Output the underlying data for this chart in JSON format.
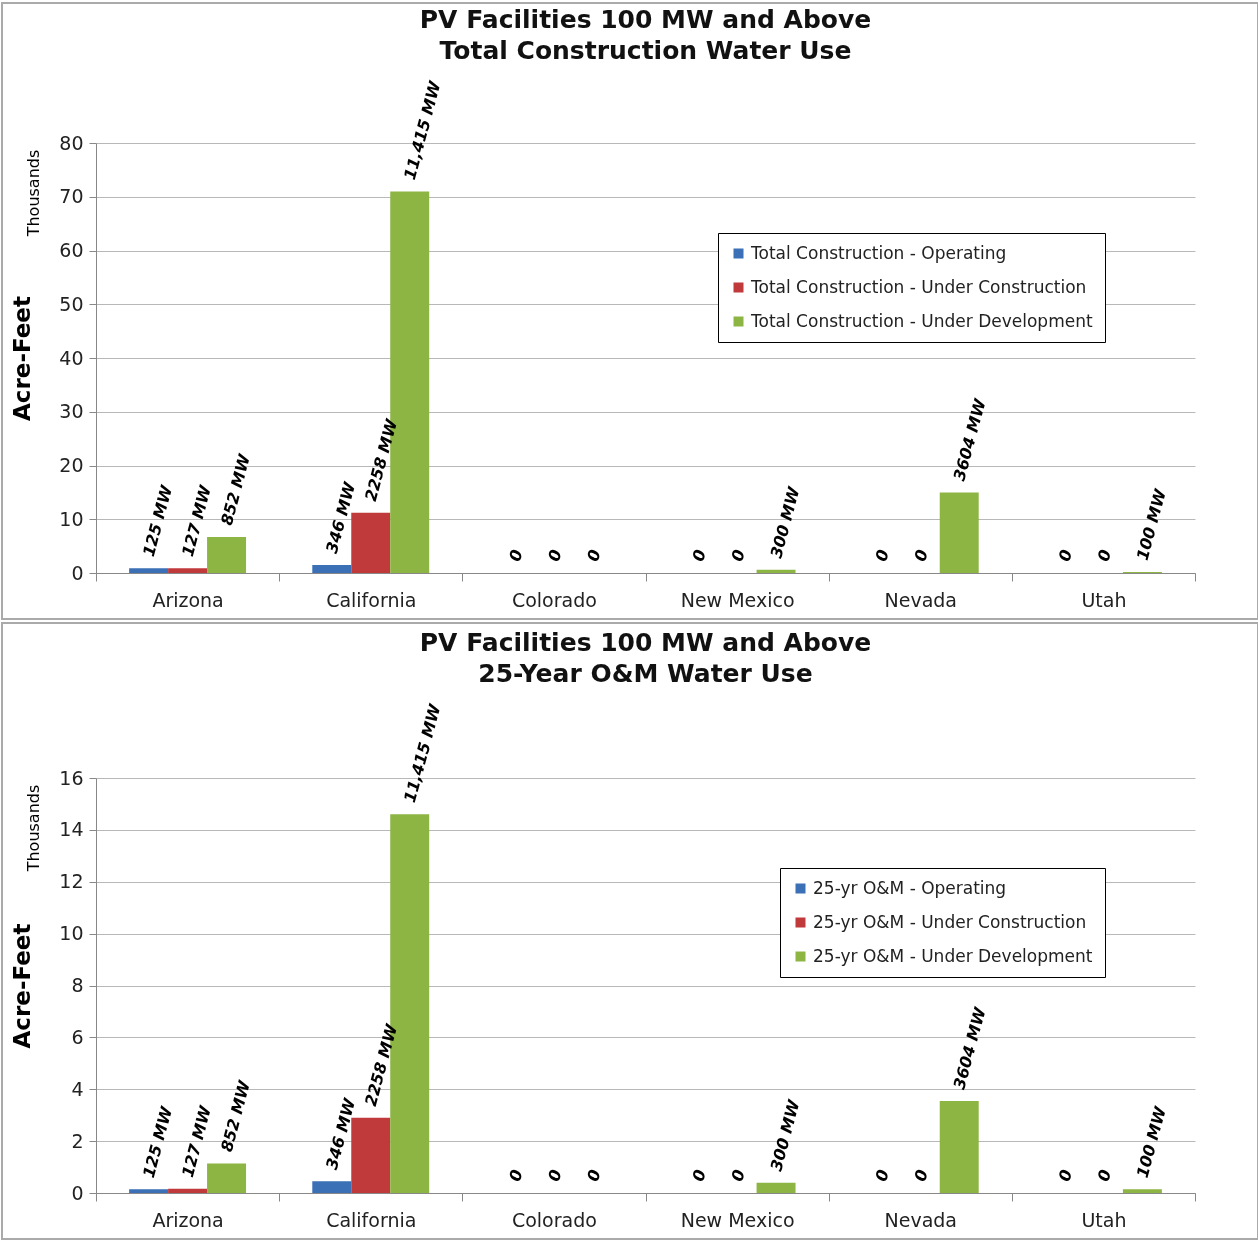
{
  "chart_data": [
    {
      "type": "bar",
      "title": "PV Facilities 100 MW and Above",
      "subtitle": "Total Construction Water Use",
      "ylabel": "Acre-Feet",
      "annotations": [
        "Thousands",
        "125 MW",
        "127 MW",
        "852 MW",
        "346 MW",
        "2258 MW",
        "11,415 MW",
        "0",
        "0",
        "0",
        "0",
        "0",
        "300 MW",
        "0",
        "0",
        "3604 MW",
        "0",
        "0",
        "100 MW"
      ],
      "categories": [
        "Arizona",
        "California",
        "Colorado",
        "New Mexico",
        "Nevada",
        "Utah"
      ],
      "series": [
        {
          "name": "Total Construction - Operating",
          "color": "#3b6fb6",
          "values": [
            0.9,
            1.5,
            0,
            0,
            0,
            0
          ]
        },
        {
          "name": "Total Construction - Under Construction",
          "color": "#c0393b",
          "values": [
            0.9,
            11.2,
            0,
            0,
            0,
            0
          ]
        },
        {
          "name": "Total Construction - Under Development",
          "color": "#8db543",
          "values": [
            6.7,
            71,
            0,
            0.6,
            15,
            0.2
          ]
        }
      ],
      "ylim": [
        0,
        80
      ],
      "yticks": [
        0,
        10,
        20,
        30,
        40,
        50,
        60,
        70,
        80
      ],
      "grid": "y",
      "legend": "top right"
    },
    {
      "type": "bar",
      "title": "PV Facilities 100 MW and Above",
      "subtitle": "25-Year O&M Water Use",
      "ylabel": "Acre-Feet",
      "annotations": [
        "Thousands",
        "125 MW",
        "127 MW",
        "852 MW",
        "346 MW",
        "2258 MW",
        "11,415 MW",
        "0",
        "0",
        "0",
        "0",
        "0",
        "300 MW",
        "0",
        "0",
        "3604 MW",
        "0",
        "0",
        "100 MW"
      ],
      "categories": [
        "Arizona",
        "California",
        "Colorado",
        "New Mexico",
        "Nevada",
        "Utah"
      ],
      "series": [
        {
          "name": "25-yr O&M - Operating",
          "color": "#3b6fb6",
          "values": [
            0.14,
            0.45,
            0,
            0,
            0,
            0
          ]
        },
        {
          "name": "25-yr O&M - Under Construction",
          "color": "#c0393b",
          "values": [
            0.16,
            2.9,
            0,
            0,
            0,
            0
          ]
        },
        {
          "name": "25-yr O&M - Under Development",
          "color": "#8db543",
          "values": [
            1.14,
            14.6,
            0,
            0.4,
            3.55,
            0.14
          ]
        }
      ],
      "ylim": [
        0,
        16
      ],
      "yticks": [
        0,
        2,
        4,
        6,
        8,
        10,
        12,
        14,
        16
      ],
      "grid": "y",
      "legend": "top right"
    }
  ]
}
